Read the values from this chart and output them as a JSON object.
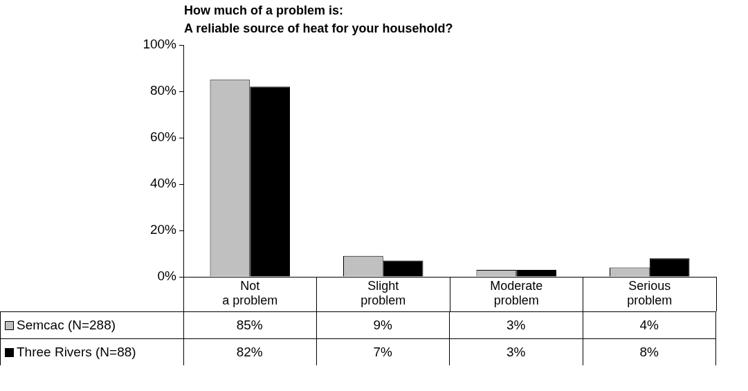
{
  "chart_data": {
    "type": "bar",
    "title": "How much of a problem is:\nA reliable source of heat for your household?",
    "categories": [
      "Not\na problem",
      "Slight\nproblem",
      "Moderate\nproblem",
      "Serious\nproblem"
    ],
    "series": [
      {
        "name": "Semcac (N=288)",
        "color": "#c0c0c0",
        "values": [
          85,
          9,
          3,
          4
        ],
        "value_labels": [
          "85%",
          "9%",
          "3%",
          "4%"
        ]
      },
      {
        "name": "Three Rivers (N=88)",
        "color": "#000000",
        "values": [
          82,
          7,
          3,
          8
        ],
        "value_labels": [
          "82%",
          "7%",
          "3%",
          "8%"
        ]
      }
    ],
    "ylim": [
      0,
      100
    ],
    "yticks": [
      {
        "value": 0,
        "label": "0%"
      },
      {
        "value": 20,
        "label": "20%"
      },
      {
        "value": 40,
        "label": "40%"
      },
      {
        "value": 60,
        "label": "60%"
      },
      {
        "value": 80,
        "label": "80%"
      },
      {
        "value": 100,
        "label": "100%"
      }
    ],
    "grid": false,
    "legend": "bottom left"
  }
}
